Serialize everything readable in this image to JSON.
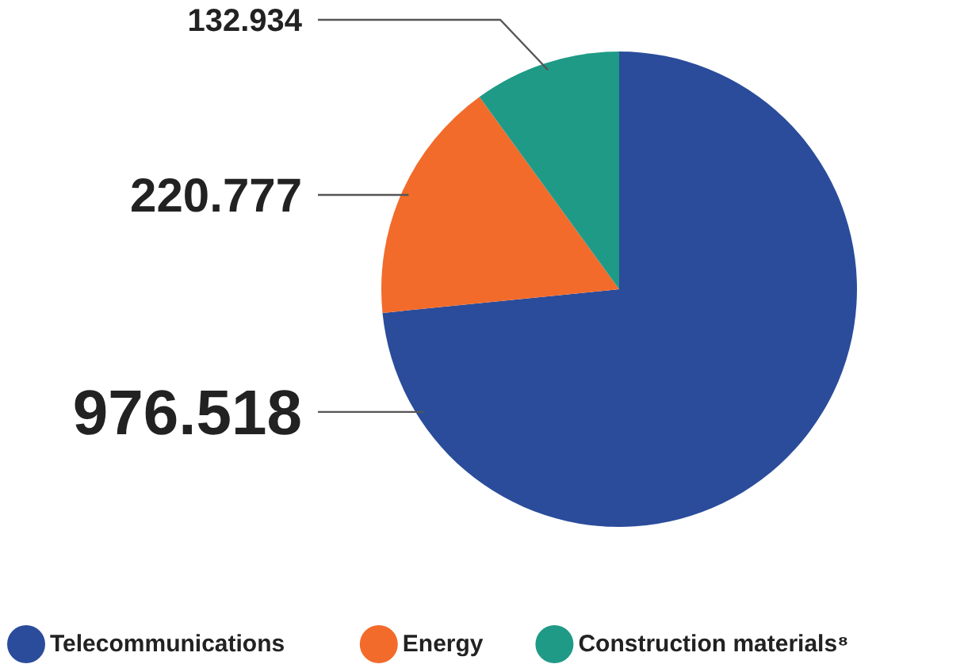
{
  "chart_data": {
    "type": "pie",
    "categories": [
      "Telecommunications",
      "Energy",
      "Construction materials⁸"
    ],
    "values": [
      976.518,
      220.777,
      132.934
    ],
    "colors": [
      "#2b4c9b",
      "#f26b2b",
      "#1f9a86"
    ],
    "data_labels": true,
    "legend": "bottom"
  }
}
